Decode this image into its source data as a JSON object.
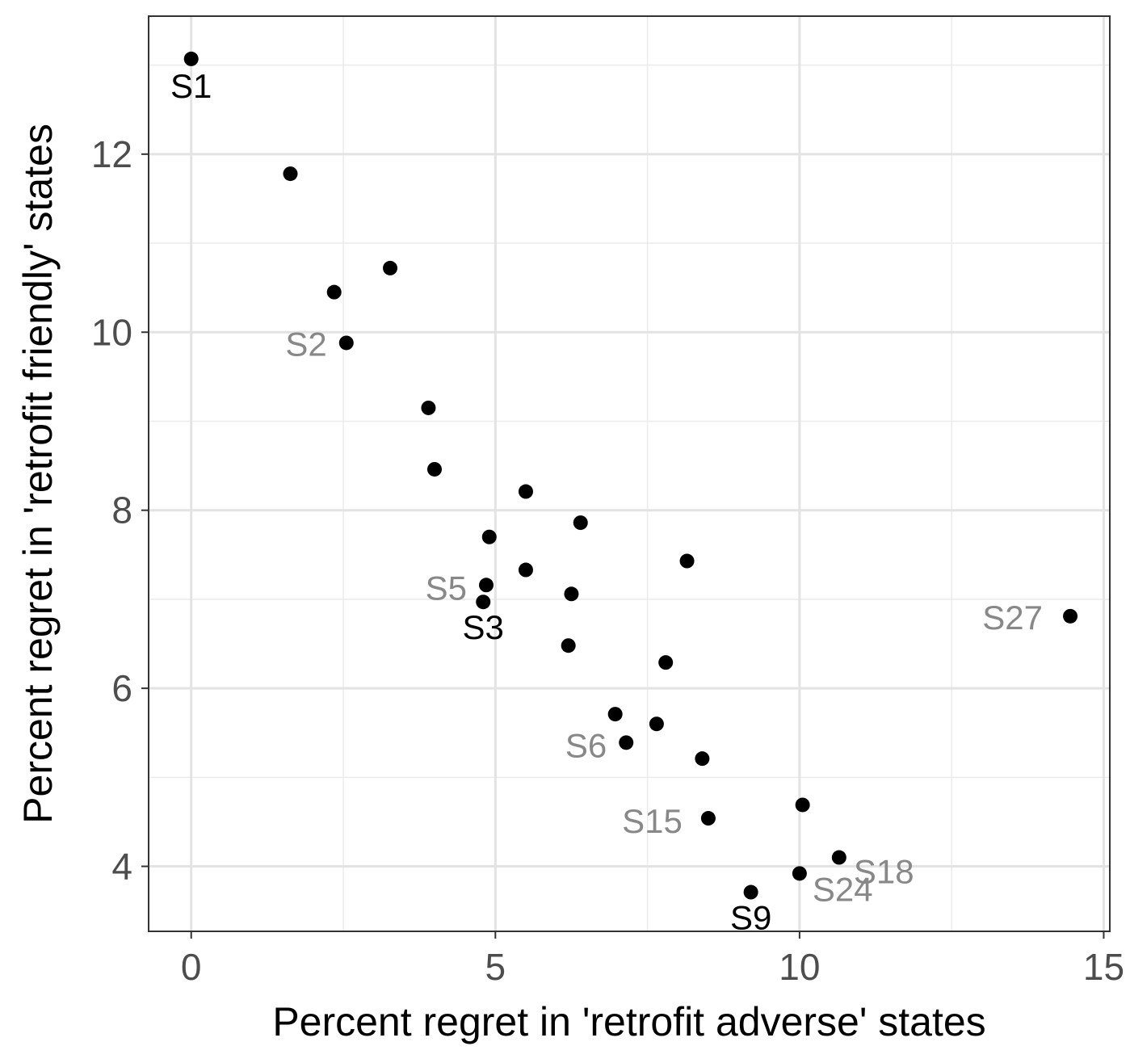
{
  "chart_data": {
    "type": "scatter",
    "title": "",
    "xlabel": "Percent regret in 'retrofit adverse' states",
    "ylabel": "Percent regret in 'retrofit friendly' states",
    "xlim": [
      -0.7,
      15.1
    ],
    "ylim": [
      3.27,
      13.55
    ],
    "x_ticks": [
      0,
      5,
      10,
      15
    ],
    "y_ticks": [
      4,
      6,
      8,
      10,
      12
    ],
    "grid": true,
    "theme": "white background with light gray major and minor gridlines, dark panel border",
    "point_color": "#000000",
    "label_colors": {
      "highlight": "#000000",
      "muted": "#888888"
    },
    "points": [
      {
        "x": 0.0,
        "y": 13.07,
        "label": "S1",
        "label_style": "highlight"
      },
      {
        "x": 1.63,
        "y": 11.78
      },
      {
        "x": 2.35,
        "y": 10.45
      },
      {
        "x": 2.55,
        "y": 9.88,
        "label": "S2",
        "label_style": "muted"
      },
      {
        "x": 3.27,
        "y": 10.72
      },
      {
        "x": 3.9,
        "y": 9.15
      },
      {
        "x": 4.0,
        "y": 8.46
      },
      {
        "x": 4.85,
        "y": 7.16,
        "label": "S5",
        "label_style": "muted"
      },
      {
        "x": 4.8,
        "y": 6.97,
        "label": "S3",
        "label_style": "highlight"
      },
      {
        "x": 4.9,
        "y": 7.7
      },
      {
        "x": 5.5,
        "y": 8.21
      },
      {
        "x": 5.5,
        "y": 7.33
      },
      {
        "x": 6.4,
        "y": 7.86
      },
      {
        "x": 6.25,
        "y": 7.06
      },
      {
        "x": 6.2,
        "y": 6.48
      },
      {
        "x": 7.8,
        "y": 6.29
      },
      {
        "x": 8.15,
        "y": 7.43
      },
      {
        "x": 6.97,
        "y": 5.71
      },
      {
        "x": 7.15,
        "y": 5.39,
        "label": "S6",
        "label_style": "muted"
      },
      {
        "x": 7.65,
        "y": 5.6
      },
      {
        "x": 8.4,
        "y": 5.21
      },
      {
        "x": 8.5,
        "y": 4.54,
        "label": "S15",
        "label_style": "muted"
      },
      {
        "x": 10.05,
        "y": 4.69
      },
      {
        "x": 10.65,
        "y": 4.1,
        "label": "S18",
        "label_style": "muted"
      },
      {
        "x": 10.0,
        "y": 3.92,
        "label": "S24",
        "label_style": "muted"
      },
      {
        "x": 9.2,
        "y": 3.71,
        "label": "S9",
        "label_style": "highlight"
      },
      {
        "x": 14.45,
        "y": 6.81,
        "label": "S27",
        "label_style": "muted"
      }
    ]
  }
}
